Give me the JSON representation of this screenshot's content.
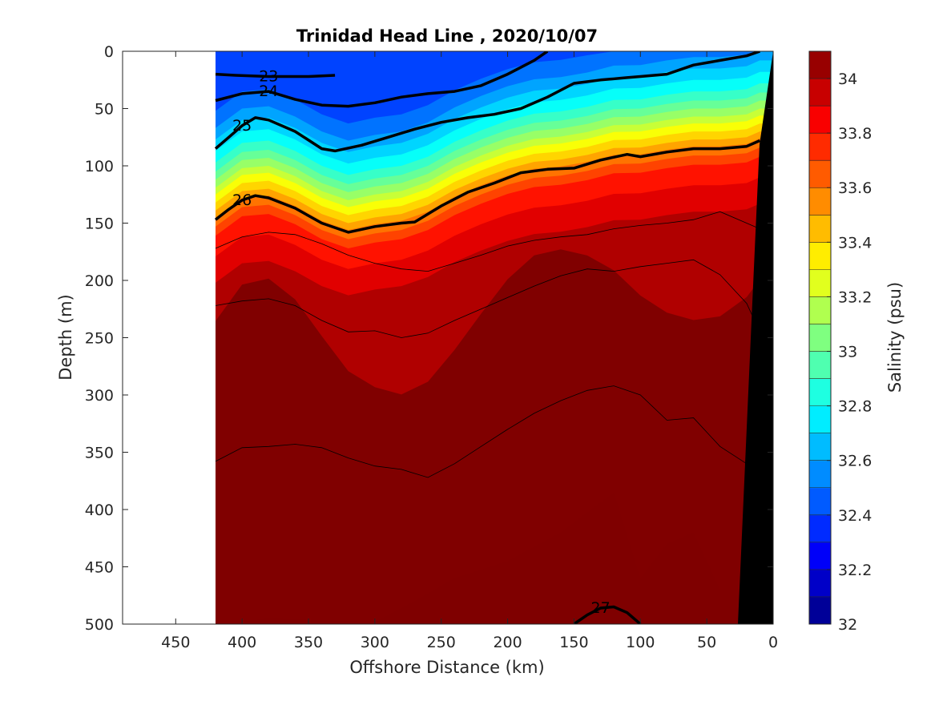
{
  "chart_data": {
    "type": "heatmap",
    "title": "Trinidad Head Line , 2020/10/07",
    "xlabel": "Offshore Distance (km)",
    "ylabel": "Depth (m)",
    "xlim": [
      490,
      0
    ],
    "ylim": [
      0,
      500
    ],
    "x_reversed": true,
    "y_reversed": true,
    "x_ticks": [
      "450",
      "400",
      "350",
      "300",
      "250",
      "200",
      "150",
      "100",
      "50",
      "0"
    ],
    "y_ticks": [
      "0",
      "50",
      "100",
      "150",
      "200",
      "250",
      "300",
      "350",
      "400",
      "450",
      "500"
    ],
    "colorbar": {
      "label": "Salinity (psu)",
      "range": [
        32,
        34.1
      ],
      "ticks": [
        "32",
        "32.2",
        "32.4",
        "32.6",
        "32.8",
        "33",
        "33.2",
        "33.4",
        "33.6",
        "33.8",
        "34"
      ],
      "colormap": "jet"
    },
    "data_extent_x": [
      420,
      10
    ],
    "salinity_field_note": "Salinity contour levels every 0.1 psu; fresher surface layer (~32.3) over saltier deep water (~34.1)",
    "isopycnals": [
      {
        "label": "23",
        "x": [
          420,
          405,
          380,
          350,
          330
        ],
        "y": [
          20,
          21,
          22,
          22,
          21
        ]
      },
      {
        "label": "24",
        "x": [
          420,
          400,
          380,
          360,
          340,
          320,
          300,
          280,
          260,
          240,
          220,
          200,
          180,
          170
        ],
        "y": [
          43,
          37,
          35,
          42,
          47,
          48,
          45,
          40,
          37,
          35,
          30,
          20,
          8,
          0
        ]
      },
      {
        "label": "25",
        "x": [
          420,
          410,
          400,
          390,
          380,
          360,
          340,
          330,
          310,
          290,
          270,
          250,
          230,
          210,
          190,
          170,
          150,
          130,
          110,
          100,
          80,
          60,
          40,
          20,
          10
        ],
        "y": [
          85,
          75,
          65,
          58,
          60,
          70,
          85,
          87,
          82,
          75,
          68,
          62,
          58,
          55,
          50,
          40,
          28,
          25,
          23,
          22,
          20,
          12,
          8,
          4,
          0
        ]
      },
      {
        "label": "26",
        "x": [
          420,
          410,
          400,
          390,
          380,
          360,
          340,
          320,
          300,
          280,
          270,
          250,
          230,
          210,
          190,
          170,
          150,
          130,
          110,
          100,
          80,
          60,
          40,
          20,
          10
        ],
        "y": [
          147,
          138,
          130,
          126,
          128,
          137,
          150,
          158,
          153,
          150,
          149,
          135,
          123,
          115,
          106,
          103,
          102,
          95,
          90,
          92,
          88,
          85,
          85,
          83,
          78
        ]
      },
      {
        "label": "27",
        "x": [
          150,
          140,
          130,
          120,
          110,
          100
        ],
        "y": [
          500,
          492,
          486,
          485,
          490,
          500
        ]
      }
    ],
    "thin_density_contours": [
      {
        "x": [
          420,
          400,
          380,
          360,
          340,
          320,
          300,
          280,
          260,
          240,
          220,
          200,
          180,
          160,
          140,
          120,
          100,
          80,
          60,
          40,
          20,
          10
        ],
        "y": [
          172,
          162,
          158,
          160,
          168,
          178,
          185,
          190,
          192,
          185,
          178,
          170,
          165,
          162,
          160,
          155,
          152,
          150,
          147,
          140,
          150,
          155
        ]
      },
      {
        "x": [
          420,
          400,
          380,
          360,
          340,
          320,
          300,
          280,
          260,
          240,
          220,
          200,
          180,
          160,
          140,
          120,
          100,
          80,
          60,
          40,
          20,
          10
        ],
        "y": [
          222,
          218,
          216,
          222,
          235,
          245,
          244,
          250,
          246,
          235,
          225,
          215,
          205,
          196,
          190,
          192,
          188,
          185,
          182,
          195,
          220,
          245
        ]
      },
      {
        "x": [
          420,
          400,
          380,
          360,
          340,
          320,
          300,
          280,
          260,
          240,
          220,
          200,
          180,
          160,
          140,
          120,
          100,
          80,
          60,
          40,
          20,
          10
        ],
        "y": [
          358,
          346,
          345,
          343,
          346,
          355,
          362,
          365,
          372,
          360,
          345,
          330,
          316,
          305,
          296,
          292,
          300,
          322,
          320,
          345,
          360,
          365
        ]
      }
    ]
  }
}
